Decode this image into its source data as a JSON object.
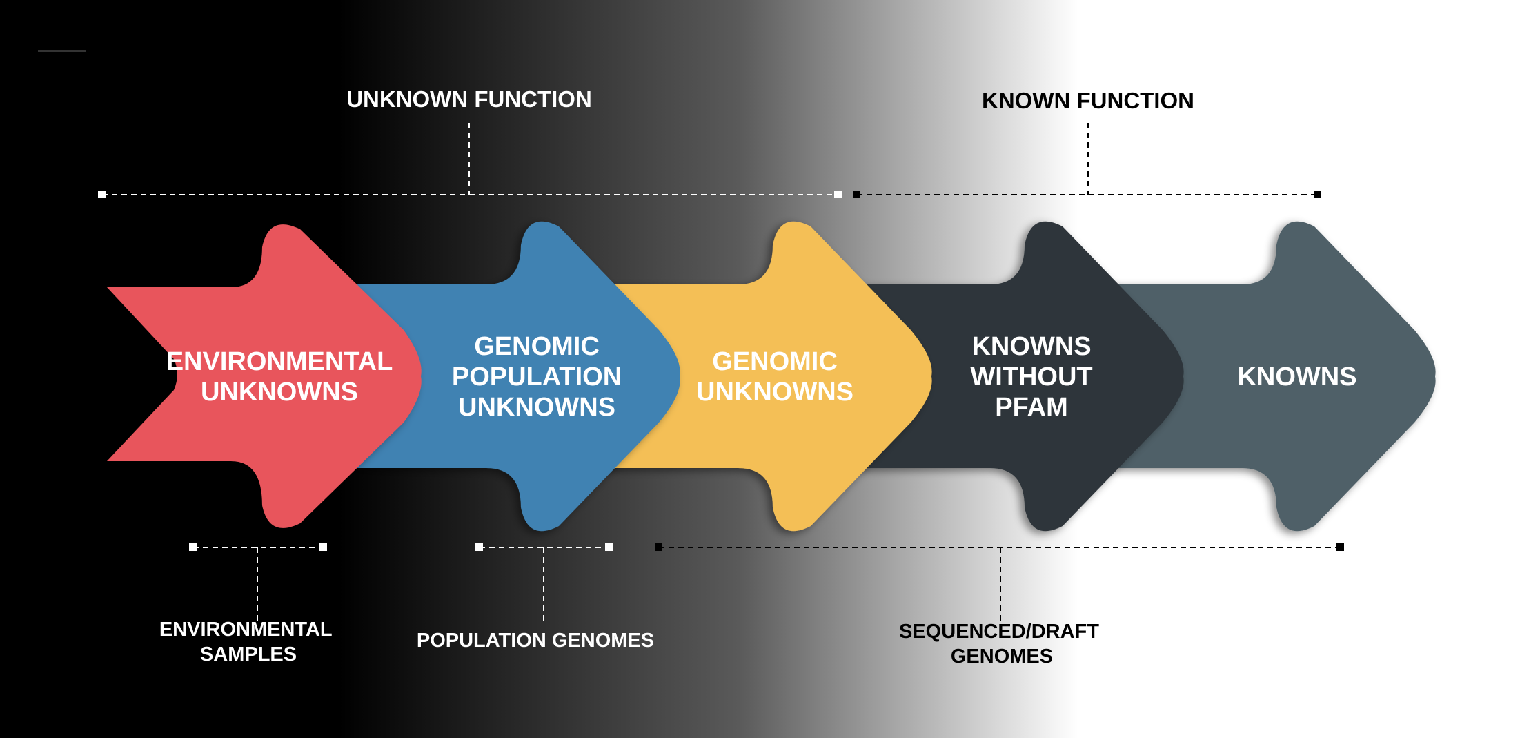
{
  "background_gradient": {
    "dark": "#000000",
    "mid": "#5a5a5a",
    "light": "#ffffff"
  },
  "headers": {
    "unknown_function": "UNKNOWN FUNCTION",
    "known_function": "KNOWN FUNCTION"
  },
  "arrows": [
    {
      "id": "environmental-unknowns",
      "lines": [
        "ENVIRONMENTAL",
        "UNKNOWNS"
      ],
      "color": "#e8555c"
    },
    {
      "id": "genomic-population-unknowns",
      "lines": [
        "GENOMIC",
        "POPULATION",
        "UNKNOWNS"
      ],
      "color": "#3f82b2"
    },
    {
      "id": "genomic-unknowns",
      "lines": [
        "GENOMIC",
        "UNKNOWNS"
      ],
      "color": "#f4bf57"
    },
    {
      "id": "knowns-without-pfam",
      "lines": [
        "KNOWNS",
        "WITHOUT",
        "PFAM"
      ],
      "color": "#2d353b"
    },
    {
      "id": "knowns",
      "lines": [
        "KNOWNS"
      ],
      "color": "#4f6068"
    }
  ],
  "sources": {
    "environmental_samples": [
      "ENVIRONMENTAL",
      "SAMPLES"
    ],
    "population_genomes": [
      "POPULATION GENOMES"
    ],
    "sequenced_draft_genomes": [
      "SEQUENCED/DRAFT",
      "GENOMES"
    ]
  },
  "colors": {
    "label_light": "#ffffff",
    "label_dark": "#000000"
  }
}
